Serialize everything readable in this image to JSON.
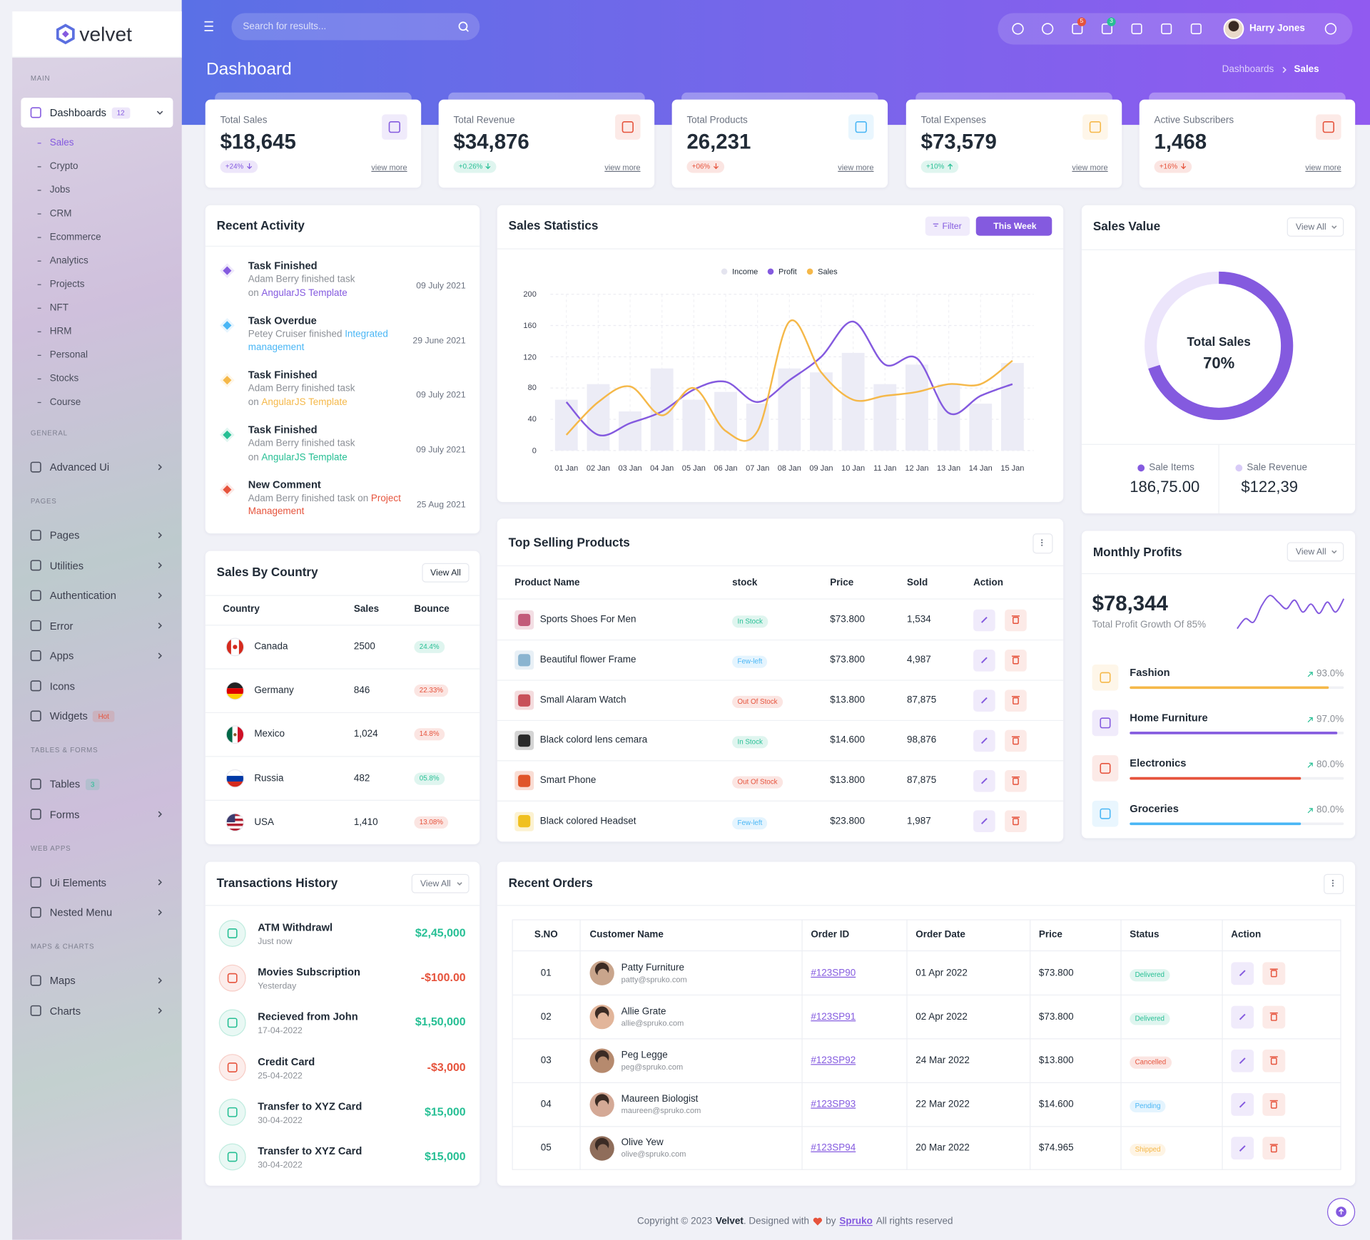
{
  "sidebar": {
    "brand": "velvet",
    "sections": [
      {
        "title": "MAIN",
        "items": [
          {
            "label": "Dashboards",
            "badge": "12",
            "badge_color": "#845adf",
            "submenu": true,
            "children": [
              "Sales",
              "Crypto",
              "Jobs",
              "CRM",
              "Ecommerce",
              "Analytics",
              "Projects",
              "NFT",
              "HRM",
              "Personal",
              "Stocks",
              "Course"
            ]
          }
        ]
      },
      {
        "title": "GENERAL",
        "items": [
          {
            "label": "Advanced Ui",
            "submenu": true
          }
        ]
      },
      {
        "title": "PAGES",
        "items": [
          {
            "label": "Pages",
            "submenu": true
          },
          {
            "label": "Utilities",
            "submenu": true
          },
          {
            "label": "Authentication",
            "submenu": true
          },
          {
            "label": "Error",
            "submenu": true
          },
          {
            "label": "Apps",
            "submenu": true
          },
          {
            "label": "Icons"
          },
          {
            "label": "Widgets",
            "badge": "Hot",
            "badge_color": "#e6533c"
          }
        ]
      },
      {
        "title": "TABLES & FORMS",
        "items": [
          {
            "label": "Tables",
            "badge": "3",
            "badge_color": "#26bf94"
          },
          {
            "label": "Forms",
            "submenu": true
          }
        ]
      },
      {
        "title": "WEB APPS",
        "items": [
          {
            "label": "Ui Elements",
            "submenu": true
          },
          {
            "label": "Nested Menu",
            "submenu": true
          }
        ]
      },
      {
        "title": "MAPS & CHARTS",
        "items": [
          {
            "label": "Maps",
            "submenu": true
          },
          {
            "label": "Charts",
            "submenu": true
          }
        ]
      }
    ]
  },
  "header": {
    "search_placeholder": "Search for results...",
    "cart_badge": "5",
    "notification_badge": "3",
    "user": "Harry Jones"
  },
  "page": {
    "title": "Dashboard",
    "breadcrumb": [
      "Dashboards",
      "Sales"
    ]
  },
  "stats": [
    {
      "label": "Total Sales",
      "value": "$18,645",
      "change": "+24%",
      "direction": "down",
      "change_color": "#845adf",
      "icon_color": "#845adf",
      "link": "view more"
    },
    {
      "label": "Total Revenue",
      "value": "$34,876",
      "change": "+0.26%",
      "direction": "down",
      "change_color": "#26bf94",
      "icon_color": "#e6533c",
      "link": "view more"
    },
    {
      "label": "Total Products",
      "value": "26,231",
      "change": "+06%",
      "direction": "down",
      "change_color": "#e6533c",
      "icon_color": "#49b6f5",
      "link": "view more"
    },
    {
      "label": "Total Expenses",
      "value": "$73,579",
      "change": "+10%",
      "direction": "up",
      "change_color": "#26bf94",
      "icon_color": "#f5b849",
      "link": "view more"
    },
    {
      "label": "Active Subscribers",
      "value": "1,468",
      "change": "+16%",
      "direction": "down",
      "change_color": "#e6533c",
      "icon_color": "#e6533c",
      "link": "view more"
    }
  ],
  "recent_activity": {
    "title": "Recent Activity",
    "items": [
      {
        "title": "Task Finished",
        "text": "Adam Berry finished task on",
        "link": "AngularJS Template",
        "date": "09 July 2021",
        "color": "#845adf"
      },
      {
        "title": "Task Overdue",
        "text": "Petey Cruiser finished",
        "link": "Integrated management",
        "date": "29 June 2021",
        "color": "#49b6f5"
      },
      {
        "title": "Task Finished",
        "text": "Adam Berry finished task on",
        "link": "AngularJS Template",
        "date": "09 July 2021",
        "color": "#f5b849"
      },
      {
        "title": "Task Finished",
        "text": "Adam Berry finished task on",
        "link": "AngularJS Template",
        "date": "09 July 2021",
        "color": "#26bf94"
      },
      {
        "title": "New Comment",
        "text": "Adam Berry finished task on",
        "link": "Project Management",
        "date": "25 Aug 2021",
        "color": "#e6533c"
      }
    ]
  },
  "sales_statistics": {
    "title": "Sales Statistics",
    "filter": "Filter",
    "period": "This Week"
  },
  "sales_value": {
    "title": "Sales Value",
    "button": "View All",
    "stats": [
      {
        "label": "Sale Items",
        "value": "186,75.00",
        "color": "#845adf"
      },
      {
        "label": "Sale Revenue",
        "value": "$122,39",
        "color": "#d8cbf7"
      }
    ]
  },
  "chart_data": [
    {
      "type": "combo",
      "categories": [
        "01 Jan",
        "02 Jan",
        "03 Jan",
        "04 Jan",
        "05 Jan",
        "06 Jan",
        "07 Jan",
        "08 Jan",
        "09 Jan",
        "10 Jan",
        "11 Jan",
        "12 Jan",
        "13 Jan",
        "14 Jan",
        "15 Jan"
      ],
      "series": [
        {
          "name": "Income",
          "color": "#ececf6",
          "kind": "bar",
          "values": [
            65,
            85,
            50,
            105,
            65,
            75,
            60,
            105,
            100,
            125,
            85,
            110,
            85,
            60,
            112
          ]
        },
        {
          "name": "Profit",
          "color": "#845adf",
          "kind": "line",
          "values": [
            62,
            20,
            35,
            50,
            78,
            88,
            62,
            90,
            120,
            165,
            110,
            118,
            48,
            70,
            85
          ]
        },
        {
          "name": "Sales",
          "color": "#f5b849",
          "kind": "line",
          "values": [
            20,
            62,
            82,
            45,
            80,
            25,
            25,
            165,
            100,
            65,
            70,
            75,
            85,
            85,
            115
          ]
        }
      ],
      "ylim": [
        0,
        200
      ],
      "yticks": [
        0,
        40,
        80,
        120,
        160,
        200
      ],
      "grid": true
    },
    {
      "type": "donut",
      "title": "Total Sales",
      "values": [
        70
      ],
      "value_labels": [
        "70%"
      ],
      "color": "#845adf",
      "track_color": "#ece5fb"
    },
    {
      "type": "line",
      "values": [
        5,
        20,
        15,
        40,
        55,
        45,
        35,
        48,
        30,
        42,
        28,
        45,
        30,
        50
      ],
      "color": "#845adf"
    }
  ],
  "sales_by_country": {
    "title": "Sales By Country",
    "button": "View All",
    "columns": [
      "Country",
      "Sales",
      "Bounce"
    ],
    "rows": [
      {
        "country": "Canada",
        "sales": "2500",
        "bounce": "24.4%",
        "bounce_color": "#26bf94"
      },
      {
        "country": "Germany",
        "sales": "846",
        "bounce": "22.33%",
        "bounce_color": "#e6533c"
      },
      {
        "country": "Mexico",
        "sales": "1,024",
        "bounce": "14.8%",
        "bounce_color": "#e6533c"
      },
      {
        "country": "Russia",
        "sales": "482",
        "bounce": "05.8%",
        "bounce_color": "#26bf94"
      },
      {
        "country": "USA",
        "sales": "1,410",
        "bounce": "13.08%",
        "bounce_color": "#e6533c"
      }
    ]
  },
  "top_selling": {
    "title": "Top Selling Products",
    "columns": [
      "Product Name",
      "stock",
      "Price",
      "Sold",
      "Action"
    ],
    "rows": [
      {
        "name": "Sports Shoes For Men",
        "stock": "In Stock",
        "stock_color": "#26bf94",
        "price": "$73.800",
        "sold": "1,534",
        "image_color": "#c25b7a"
      },
      {
        "name": "Beautiful flower Frame",
        "stock": "Few-left",
        "stock_color": "#49b6f5",
        "price": "$73.800",
        "sold": "4,987",
        "image_color": "#8ab4d0"
      },
      {
        "name": "Small Alaram Watch",
        "stock": "Out Of Stock",
        "stock_color": "#e6533c",
        "price": "$13.800",
        "sold": "87,875",
        "image_color": "#c8505a"
      },
      {
        "name": "Black colord lens cemara",
        "stock": "In Stock",
        "stock_color": "#26bf94",
        "price": "$14.600",
        "sold": "98,876",
        "image_color": "#2a2a2a"
      },
      {
        "name": "Smart Phone",
        "stock": "Out Of Stock",
        "stock_color": "#e6533c",
        "price": "$13.800",
        "sold": "87,875",
        "image_color": "#e0552a"
      },
      {
        "name": "Black colored Headset",
        "stock": "Few-left",
        "stock_color": "#49b6f5",
        "price": "$23.800",
        "sold": "1,987",
        "image_color": "#f0c020"
      }
    ]
  },
  "monthly_profits": {
    "title": "Monthly Profits",
    "button": "View All",
    "amount": "$78,344",
    "subtitle": "Total Profit Growth Of 85%",
    "items": [
      {
        "name": "Fashion",
        "value": 93.0,
        "value_label": "93.0%",
        "color": "#f5b849"
      },
      {
        "name": "Home Furniture",
        "value": 97.0,
        "value_label": "97.0%",
        "color": "#845adf"
      },
      {
        "name": "Electronics",
        "value": 80.0,
        "value_label": "80.0%",
        "color": "#e6533c"
      },
      {
        "name": "Groceries",
        "value": 80.0,
        "value_label": "80.0%",
        "color": "#49b6f5"
      }
    ]
  },
  "transactions": {
    "title": "Transactions History",
    "button": "View All",
    "items": [
      {
        "title": "ATM Withdrawl",
        "subtitle": "Just now",
        "amount": "$2,45,000",
        "color": "#26bf94"
      },
      {
        "title": "Movies Subscription",
        "subtitle": "Yesterday",
        "amount": "-$100.00",
        "color": "#e6533c"
      },
      {
        "title": "Recieved from John",
        "subtitle": "17-04-2022",
        "amount": "$1,50,000",
        "color": "#26bf94"
      },
      {
        "title": "Credit Card",
        "subtitle": "25-04-2022",
        "amount": "-$3,000",
        "color": "#e6533c"
      },
      {
        "title": "Transfer to XYZ Card",
        "subtitle": "30-04-2022",
        "amount": "$15,000",
        "color": "#26bf94"
      },
      {
        "title": "Transfer to XYZ Card",
        "subtitle": "30-04-2022",
        "amount": "$15,000",
        "color": "#26bf94"
      }
    ]
  },
  "recent_orders": {
    "title": "Recent Orders",
    "columns": [
      "S.NO",
      "Customer Name",
      "Order ID",
      "Order Date",
      "Price",
      "Status",
      "Action"
    ],
    "rows": [
      {
        "no": "01",
        "name": "Patty Furniture",
        "email": "patty@spruko.com",
        "order_id": "#123SP90",
        "date": "01 Apr 2022",
        "price": "$73.800",
        "status": "Delivered",
        "status_color": "#26bf94"
      },
      {
        "no": "02",
        "name": "Allie Grate",
        "email": "allie@spruko.com",
        "order_id": "#123SP91",
        "date": "02 Apr 2022",
        "price": "$73.800",
        "status": "Delivered",
        "status_color": "#26bf94"
      },
      {
        "no": "03",
        "name": "Peg Legge",
        "email": "peg@spruko.com",
        "order_id": "#123SP92",
        "date": "24 Mar 2022",
        "price": "$13.800",
        "status": "Cancelled",
        "status_color": "#e6533c"
      },
      {
        "no": "04",
        "name": "Maureen Biologist",
        "email": "maureen@spruko.com",
        "order_id": "#123SP93",
        "date": "22 Mar 2022",
        "price": "$14.600",
        "status": "Pending",
        "status_color": "#49b6f5"
      },
      {
        "no": "05",
        "name": "Olive Yew",
        "email": "olive@spruko.com",
        "order_id": "#123SP94",
        "date": "20 Mar 2022",
        "price": "$74.965",
        "status": "Shipped",
        "status_color": "#f5b849"
      }
    ]
  },
  "footer": {
    "copyright": "Copyright © 2023",
    "brand": "Velvet",
    "designed": ". Designed with",
    "by": "by",
    "company": "Spruko",
    "rights": "All rights reserved"
  }
}
